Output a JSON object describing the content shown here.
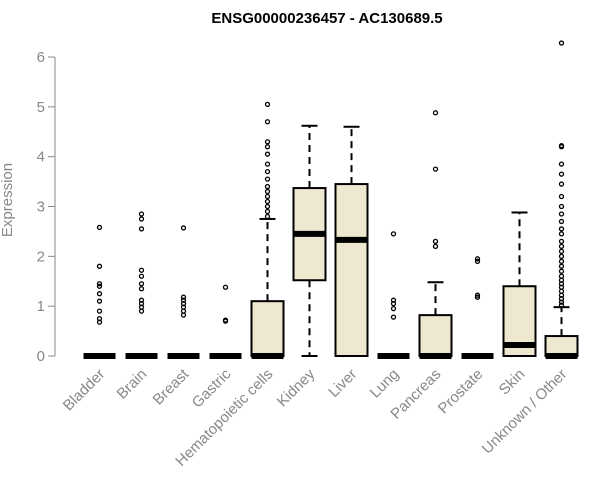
{
  "chart_data": {
    "type": "boxplot",
    "title": "ENSG00000236457 - AC130689.5",
    "xlabel": "",
    "ylabel": "Expression",
    "ylim": [
      0,
      6.3
    ],
    "yticks": [
      0,
      1,
      2,
      3,
      4,
      5,
      6
    ],
    "grid": false,
    "legend": "none",
    "box_fill": "#efe8d0",
    "stroke": "#000000",
    "label_color": "#888888",
    "categories": [
      "Bladder",
      "Brain",
      "Breast",
      "Gastric",
      "Hematopoietic cells",
      "Kidney",
      "Liver",
      "Lung",
      "Pancreas",
      "Prostate",
      "Skin",
      "Unknown / Other"
    ],
    "boxes": [
      {
        "category": "Bladder",
        "q1": 0,
        "median": 0,
        "q3": 0,
        "whisker_low": 0,
        "whisker_high": 0,
        "outliers": [
          0.68,
          0.75,
          0.9,
          1.1,
          1.25,
          1.4,
          1.45,
          1.8,
          2.58
        ]
      },
      {
        "category": "Brain",
        "q1": 0,
        "median": 0,
        "q3": 0,
        "whisker_low": 0,
        "whisker_high": 0,
        "outliers": [
          0.9,
          0.98,
          1.05,
          1.12,
          1.35,
          1.45,
          1.6,
          1.72,
          2.55,
          2.75,
          2.85
        ]
      },
      {
        "category": "Breast",
        "q1": 0,
        "median": 0,
        "q3": 0,
        "whisker_low": 0,
        "whisker_high": 0,
        "outliers": [
          0.82,
          0.9,
          0.98,
          1.05,
          1.12,
          1.18,
          2.57
        ]
      },
      {
        "category": "Gastric",
        "q1": 0,
        "median": 0,
        "q3": 0,
        "whisker_low": 0,
        "whisker_high": 0,
        "outliers": [
          0.7,
          0.72,
          1.38
        ]
      },
      {
        "category": "Hematopoietic cells",
        "q1": 0,
        "median": 0,
        "q3": 1.1,
        "whisker_low": 0,
        "whisker_high": 2.75,
        "outliers": [
          2.8,
          2.9,
          3.0,
          3.1,
          3.2,
          3.3,
          3.4,
          3.55,
          3.7,
          3.85,
          4.05,
          4.2,
          4.3,
          4.7,
          5.05
        ]
      },
      {
        "category": "Kidney",
        "q1": 1.52,
        "median": 2.45,
        "q3": 3.37,
        "whisker_low": 0,
        "whisker_high": 4.62,
        "outliers": []
      },
      {
        "category": "Liver",
        "q1": 0,
        "median": 2.33,
        "q3": 3.45,
        "whisker_low": 0,
        "whisker_high": 4.6,
        "outliers": []
      },
      {
        "category": "Lung",
        "q1": 0,
        "median": 0,
        "q3": 0,
        "whisker_low": 0,
        "whisker_high": 0,
        "outliers": [
          0.78,
          0.95,
          1.05,
          1.12,
          2.45
        ]
      },
      {
        "category": "Pancreas",
        "q1": 0,
        "median": 0,
        "q3": 0.82,
        "whisker_low": 0,
        "whisker_high": 1.48,
        "outliers": [
          2.2,
          2.3,
          3.75,
          4.88
        ]
      },
      {
        "category": "Prostate",
        "q1": 0,
        "median": 0,
        "q3": 0,
        "whisker_low": 0,
        "whisker_high": 0,
        "outliers": [
          1.18,
          1.22,
          1.9,
          1.95
        ]
      },
      {
        "category": "Skin",
        "q1": 0,
        "median": 0.22,
        "q3": 1.4,
        "whisker_low": 0,
        "whisker_high": 2.88,
        "outliers": []
      },
      {
        "category": "Unknown / Other",
        "q1": 0,
        "median": 0,
        "q3": 0.4,
        "whisker_low": 0,
        "whisker_high": 0.98,
        "outliers": [
          1.02,
          1.08,
          1.15,
          1.22,
          1.3,
          1.38,
          1.45,
          1.52,
          1.6,
          1.7,
          1.8,
          1.9,
          2.0,
          2.1,
          2.2,
          2.3,
          2.45,
          2.55,
          2.7,
          2.85,
          3.0,
          3.2,
          3.45,
          3.65,
          3.85,
          4.2,
          4.22,
          6.28
        ]
      }
    ]
  }
}
